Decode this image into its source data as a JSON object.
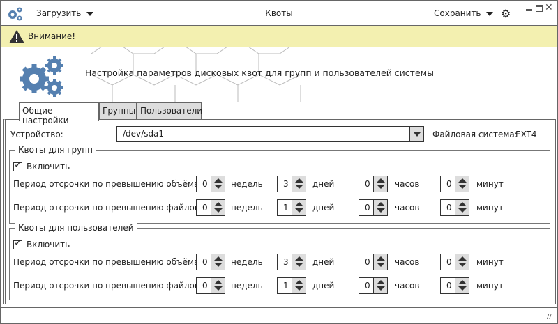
{
  "titlebar": {
    "load_label": "Загрузить",
    "title": "Квоты",
    "save_label": "Сохранить"
  },
  "warning": {
    "text": "Внимание!"
  },
  "header": {
    "text": "Настройка параметров дисковых квот для групп и пользователей системы"
  },
  "tabs": [
    {
      "label": "Общие настройки",
      "active": true
    },
    {
      "label": "Группы"
    },
    {
      "label": "Пользователи"
    }
  ],
  "device": {
    "label": "Устройство:",
    "value": "/dev/sda1",
    "fs_label": "Файловая система:",
    "fs_value": "EXT4"
  },
  "units": {
    "weeks": "недель",
    "days": "дней",
    "hours": "часов",
    "minutes": "минут"
  },
  "sections": [
    {
      "title": "Квоты для групп",
      "enable_label": "Включить",
      "enabled": true,
      "rows": [
        {
          "label": "Период отсрочки по превышению объёма:",
          "weeks": "0",
          "days": "3",
          "hours": "0",
          "minutes": "0"
        },
        {
          "label": "Период отсрочки по превышению файлов:",
          "weeks": "0",
          "days": "1",
          "hours": "0",
          "minutes": "0"
        }
      ]
    },
    {
      "title": "Квоты для пользователей",
      "enable_label": "Включить",
      "enabled": true,
      "rows": [
        {
          "label": "Период отсрочки по превышению объёма:",
          "weeks": "0",
          "days": "3",
          "hours": "0",
          "minutes": "0"
        },
        {
          "label": "Период отсрочки по превышению файлов:",
          "weeks": "0",
          "days": "1",
          "hours": "0",
          "minutes": "0"
        }
      ]
    }
  ],
  "colors": {
    "accent": "#5580b0",
    "warning_bg": "#f3f0b0"
  }
}
